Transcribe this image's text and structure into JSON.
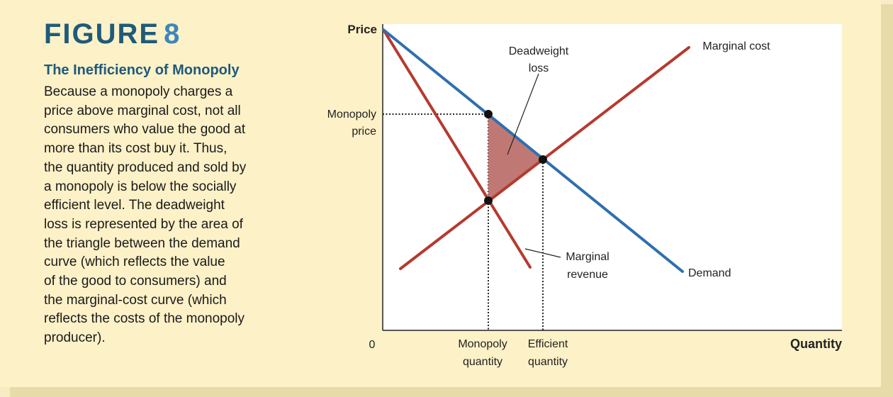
{
  "figure": {
    "label": "FIGURE",
    "number": "8",
    "title": "The Inefficiency of Monopoly",
    "caption": "Because a monopoly charges a\nprice above marginal cost, not all\nconsumers who value the good at\nmore than its cost buy it. Thus,\nthe quantity produced and sold by\na monopoly is below the socially\nefficient level. The deadweight\nloss is represented by the area of\nthe triangle between the demand\ncurve (which reflects the value\nof the good to consumers) and\nthe marginal-cost curve (which\nreflects the costs of the monopoly\nproducer)."
  },
  "diagram": {
    "y_axis_label": "Price",
    "x_axis_label": "Quantity",
    "origin_label": "0",
    "monopoly_price_label": [
      "Monopoly",
      "price"
    ],
    "monopoly_quantity_label": [
      "Monopoly",
      "quantity"
    ],
    "efficient_quantity_label": [
      "Efficient",
      "quantity"
    ],
    "curves": {
      "demand": "Demand",
      "marginal_cost": "Marginal cost",
      "marginal_revenue": [
        "Marginal",
        "revenue"
      ]
    },
    "deadweight_loss_label": [
      "Deadweight",
      "loss"
    ],
    "colors": {
      "demand": "#2f6fb0",
      "marginal_cost": "#b53a2f",
      "marginal_revenue": "#b53a2f",
      "deadweight_loss": "#c07874",
      "plot_background": "#ffffff"
    }
  }
}
